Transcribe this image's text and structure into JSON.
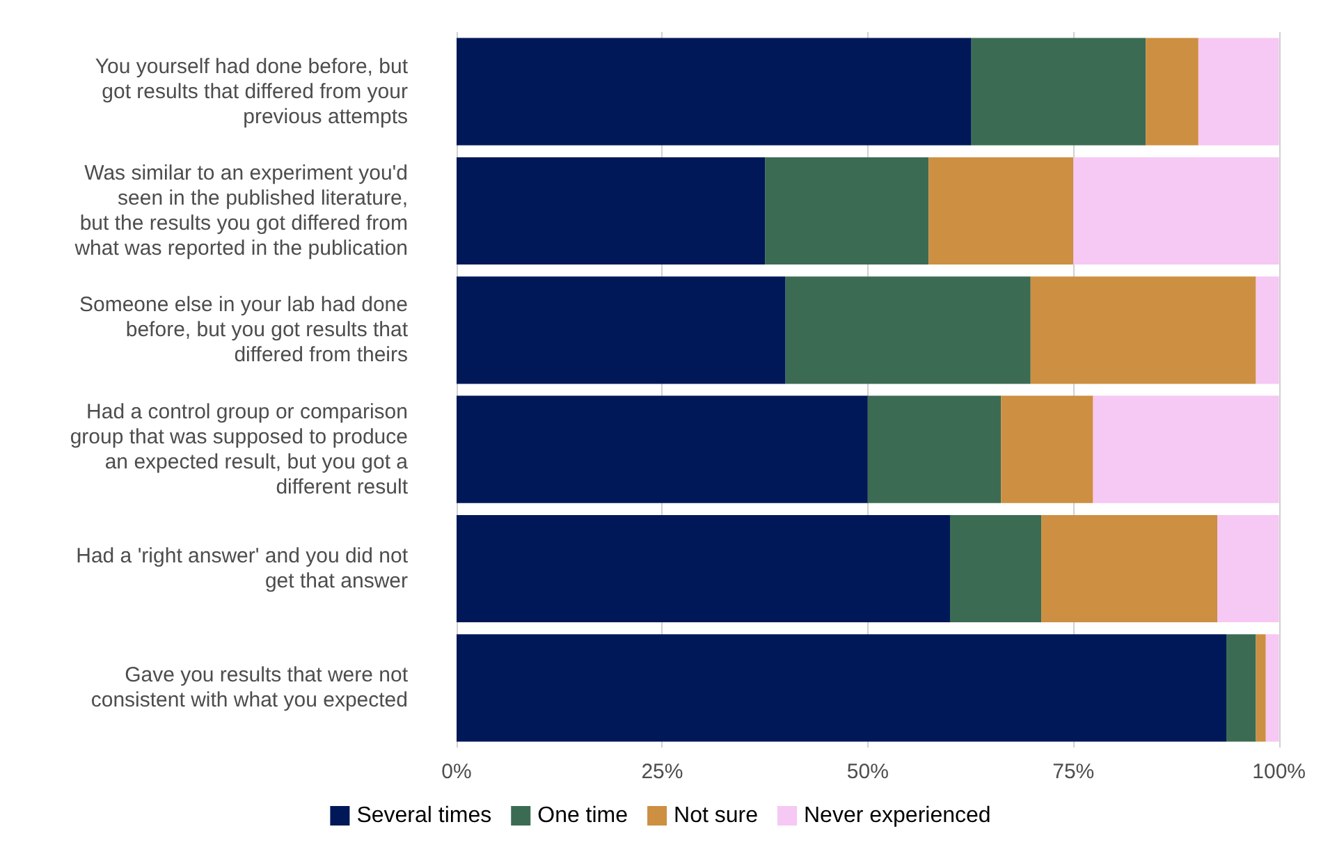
{
  "chart_data": {
    "type": "bar",
    "orientation": "horizontal",
    "stacked": true,
    "categories": [
      "You yourself had done before, but\ngot results that differed from your\nprevious attempts",
      "Was similar to an experiment you'd\nseen in the published literature,\nbut the results you got differed from\nwhat was reported in the publication",
      "Someone else in your lab had done\nbefore, but you got results that\ndiffered from theirs",
      "Had a control group or comparison\ngroup that was supposed to produce\nan expected result, but you got a\ndifferent result",
      "Had a 'right answer' and you did not\nget that answer",
      "Gave you results that were not\nconsistent with what you expected"
    ],
    "series": [
      {
        "name": "Several times",
        "color": "#001858",
        "values": [
          62.6,
          37.5,
          40.0,
          50.0,
          60.0,
          93.6
        ]
      },
      {
        "name": "One time",
        "color": "#3b6c53",
        "values": [
          21.2,
          19.9,
          29.8,
          16.2,
          11.1,
          3.6
        ]
      },
      {
        "name": "Not sure",
        "color": "#cd8f41",
        "values": [
          6.4,
          17.6,
          27.4,
          11.2,
          21.4,
          1.2
        ]
      },
      {
        "name": "Never experienced",
        "color": "#f6c8f4",
        "values": [
          9.8,
          25.0,
          2.8,
          22.6,
          7.5,
          1.6
        ]
      }
    ],
    "xlim": [
      0,
      100
    ],
    "xticks": [
      {
        "value": 0,
        "label": "0%"
      },
      {
        "value": 25,
        "label": "25%"
      },
      {
        "value": 50,
        "label": "50%"
      },
      {
        "value": 75,
        "label": "75%"
      },
      {
        "value": 100,
        "label": "100%"
      }
    ],
    "grid": "x",
    "legend": "bottom"
  }
}
